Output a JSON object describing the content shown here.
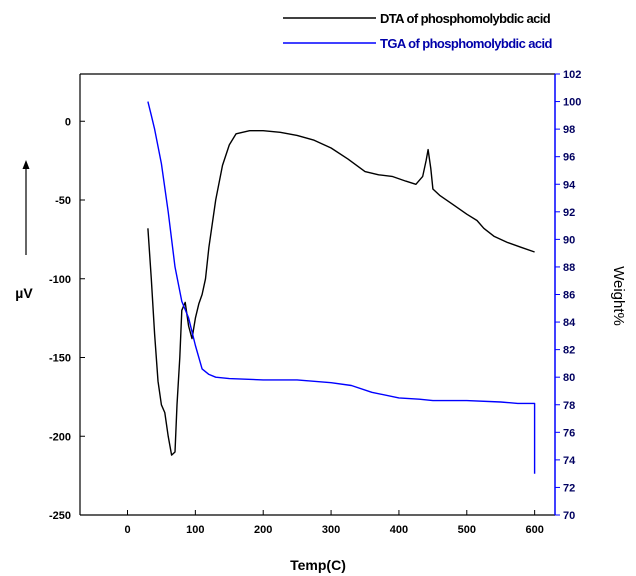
{
  "chart_data": {
    "type": "line",
    "title": "",
    "xlabel": "Temp(C)",
    "ylabel_left": "µV",
    "ylabel_right": "Weight%",
    "xlim": [
      -70,
      630
    ],
    "ylim_left": [
      -250,
      30
    ],
    "ylim_right": [
      70,
      102
    ],
    "x_ticks": [
      0,
      100,
      200,
      300,
      400,
      500,
      600
    ],
    "y_left_ticks": [
      0,
      -50,
      -100,
      -150,
      -200,
      -250
    ],
    "y_right_ticks": [
      70,
      72,
      74,
      76,
      78,
      80,
      82,
      84,
      86,
      88,
      90,
      92,
      94,
      96,
      98,
      100,
      102
    ],
    "grid": false,
    "legend_position": "top-right, outside plot",
    "series": [
      {
        "name": "DTA of phosphomolybdic acid",
        "axis": "left",
        "color": "#000000",
        "x": [
          30,
          35,
          40,
          45,
          50,
          55,
          60,
          65,
          70,
          73,
          77,
          80,
          85,
          90,
          95,
          100,
          105,
          110,
          115,
          120,
          130,
          140,
          150,
          160,
          180,
          200,
          225,
          250,
          275,
          300,
          325,
          350,
          370,
          390,
          410,
          425,
          435,
          440,
          443,
          447,
          450,
          460,
          480,
          500,
          515,
          525,
          540,
          560,
          580,
          600
        ],
        "y": [
          -68,
          -100,
          -135,
          -165,
          -180,
          -185,
          -200,
          -212,
          -210,
          -180,
          -150,
          -120,
          -115,
          -130,
          -138,
          -125,
          -116,
          -110,
          -100,
          -80,
          -50,
          -28,
          -15,
          -8,
          -6,
          -6,
          -7,
          -9,
          -12,
          -17,
          -24,
          -32,
          -34,
          -35,
          -38,
          -40,
          -35,
          -25,
          -18,
          -30,
          -43,
          -47,
          -53,
          -59,
          -63,
          -68,
          -73,
          -77,
          -80,
          -83
        ]
      },
      {
        "name": "TGA of phosphomolybdic acid",
        "axis": "right",
        "color": "#0000ff",
        "x": [
          30,
          35,
          40,
          50,
          60,
          70,
          80,
          90,
          100,
          110,
          120,
          130,
          150,
          200,
          250,
          300,
          330,
          360,
          400,
          430,
          450,
          500,
          550,
          575,
          600,
          600
        ],
        "y": [
          100,
          99,
          98,
          95.5,
          92,
          88,
          85.5,
          84.3,
          82.3,
          80.6,
          80.2,
          80.0,
          79.9,
          79.8,
          79.8,
          79.6,
          79.4,
          78.9,
          78.5,
          78.4,
          78.3,
          78.3,
          78.2,
          78.1,
          78.1,
          73
        ]
      }
    ]
  }
}
